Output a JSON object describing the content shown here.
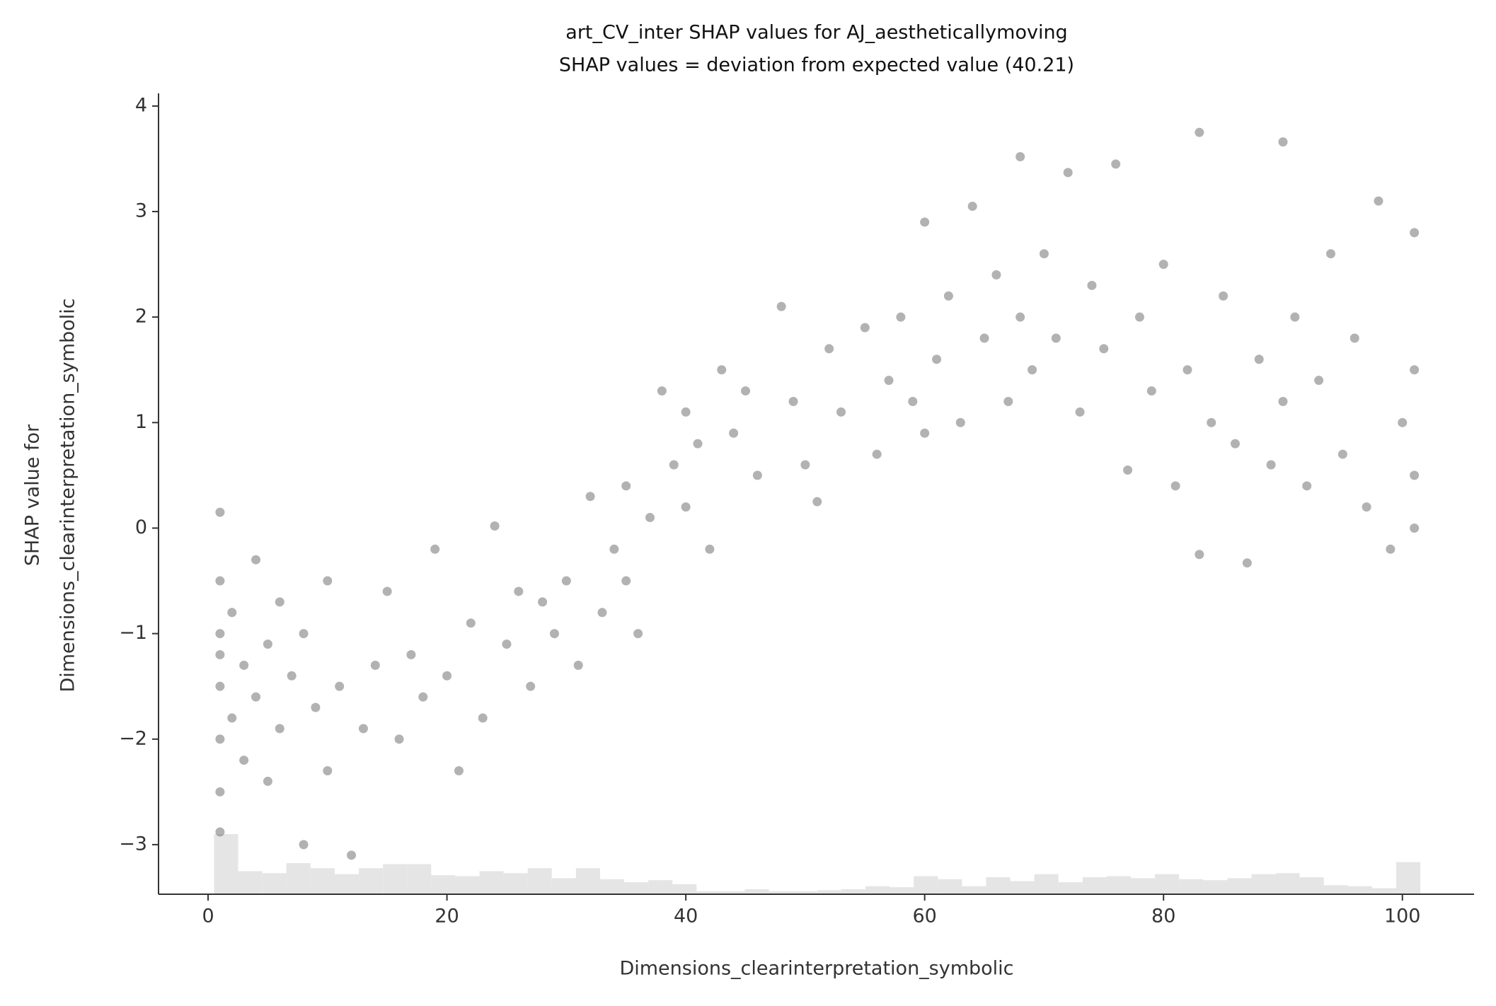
{
  "chart_data": {
    "type": "scatter",
    "title": "art_CV_inter SHAP values for AJ_aestheticallymoving",
    "subtitle": "SHAP values = deviation from expected value (40.21)",
    "x_label": "Dimensions_clearinterpretation_symbolic",
    "y_label": [
      "SHAP value for",
      "Dimensions_clearinterpretation_symbolic"
    ],
    "color": "#7f7f7f",
    "x": [
      1,
      1,
      1,
      1,
      1,
      1,
      1,
      1,
      2,
      2,
      3,
      3,
      4,
      4,
      5,
      5,
      6,
      6,
      7,
      8,
      8,
      9,
      10,
      10,
      11,
      12,
      13,
      14,
      15,
      16,
      17,
      18,
      19,
      20,
      21,
      22,
      23,
      24,
      25,
      26,
      27,
      28,
      29,
      30,
      31,
      32,
      33,
      34,
      35,
      35,
      36,
      37,
      38,
      39,
      40,
      40,
      41,
      42,
      43,
      44,
      45,
      46,
      48,
      49,
      50,
      51,
      52,
      53,
      55,
      56,
      57,
      58,
      59,
      60,
      60,
      61,
      62,
      63,
      64,
      65,
      66,
      67,
      68,
      68,
      69,
      70,
      71,
      72,
      73,
      74,
      75,
      76,
      77,
      78,
      79,
      80,
      81,
      82,
      83,
      83,
      84,
      85,
      86,
      87,
      88,
      89,
      90,
      90,
      91,
      92,
      93,
      94,
      95,
      96,
      97,
      98,
      99,
      100,
      101,
      101,
      101,
      101
    ],
    "values": [
      0.15,
      -0.5,
      -1.0,
      -1.5,
      -2.0,
      -2.5,
      -2.88,
      -1.2,
      -1.8,
      -0.8,
      -1.3,
      -2.2,
      -0.3,
      -1.6,
      -1.1,
      -2.4,
      -0.7,
      -1.9,
      -1.4,
      -3.0,
      -1.0,
      -1.7,
      -0.5,
      -2.3,
      -1.5,
      -3.1,
      -1.9,
      -1.3,
      -0.6,
      -2.0,
      -1.2,
      -1.6,
      -0.2,
      -1.4,
      -2.3,
      -0.9,
      -1.8,
      0.02,
      -1.1,
      -0.6,
      -1.5,
      -0.7,
      -1.0,
      -0.5,
      -1.3,
      0.3,
      -0.8,
      -0.2,
      -0.5,
      0.4,
      -1.0,
      0.1,
      1.3,
      0.6,
      0.2,
      1.1,
      0.8,
      -0.2,
      1.5,
      0.9,
      1.3,
      0.5,
      2.1,
      1.2,
      0.6,
      0.25,
      1.7,
      1.1,
      1.9,
      0.7,
      1.4,
      2.0,
      1.2,
      2.9,
      0.9,
      1.6,
      2.2,
      1.0,
      3.05,
      1.8,
      2.4,
      1.2,
      3.52,
      2.0,
      1.5,
      2.6,
      1.8,
      3.37,
      1.1,
      2.3,
      1.7,
      3.45,
      0.55,
      2.0,
      1.3,
      2.5,
      0.4,
      1.5,
      3.75,
      -0.25,
      1.0,
      2.2,
      0.8,
      -0.33,
      1.6,
      0.6,
      3.66,
      1.2,
      2.0,
      0.4,
      1.4,
      2.6,
      0.7,
      1.8,
      0.2,
      3.1,
      -0.2,
      1.0,
      2.8,
      0.0,
      1.5,
      0.5
    ],
    "histogram": {
      "color": "#e5e5e5",
      "bins": [
        0.5,
        2.52,
        4.54,
        6.56,
        8.58,
        10.6,
        12.62,
        14.64,
        16.66,
        18.68,
        20.7,
        22.72,
        24.74,
        26.76,
        28.78,
        30.8,
        32.82,
        34.84,
        36.86,
        38.88,
        40.9,
        42.92,
        44.94,
        46.96,
        48.98,
        51.0,
        53.02,
        55.04,
        57.06,
        59.08,
        61.1,
        63.12,
        65.14,
        67.16,
        69.18,
        71.2,
        73.22,
        75.24,
        77.26,
        79.28,
        81.3,
        83.32,
        85.34,
        87.36,
        89.38,
        91.4,
        93.42,
        95.44,
        97.46,
        99.48,
        101.5
      ],
      "counts": [
        600,
        230,
        210,
        310,
        260,
        200,
        260,
        300,
        300,
        190,
        180,
        230,
        210,
        260,
        160,
        260,
        150,
        120,
        140,
        100,
        30,
        30,
        50,
        30,
        30,
        40,
        50,
        80,
        70,
        180,
        150,
        80,
        170,
        130,
        200,
        120,
        170,
        180,
        160,
        200,
        150,
        140,
        160,
        200,
        210,
        170,
        90,
        80,
        60,
        320
      ]
    },
    "xlim": [
      -4.15,
      106
    ],
    "ylim": [
      -3.47,
      4.12
    ],
    "xticks": [
      0,
      20,
      40,
      60,
      80,
      100
    ],
    "yticks": [
      {
        "value": -3,
        "label": "−3"
      },
      {
        "value": -2,
        "label": "−2"
      },
      {
        "value": -1,
        "label": "−1"
      },
      0,
      1,
      2,
      3,
      4
    ],
    "grid": false
  }
}
